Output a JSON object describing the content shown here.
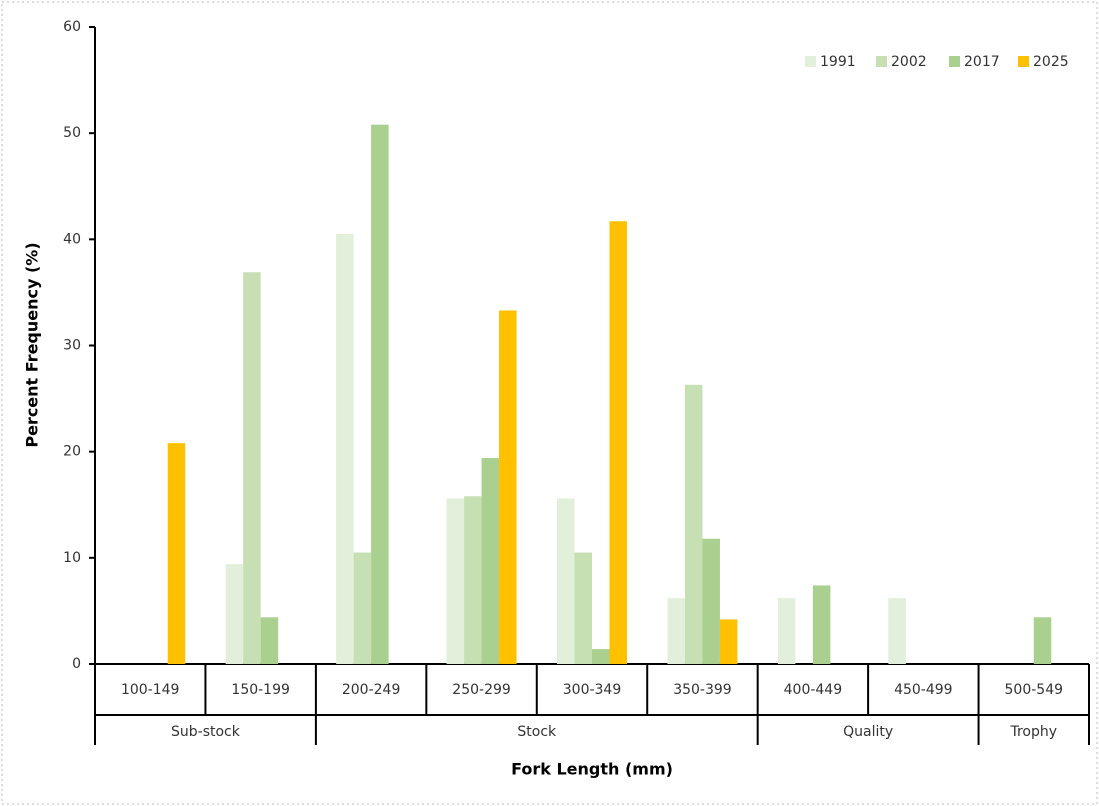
{
  "chart_data": {
    "type": "bar",
    "x_axis_label": "Fork Length (mm)",
    "y_axis_label": "Percent Frequency (%)",
    "categories": [
      "100-149",
      "150-199",
      "200-249",
      "250-299",
      "300-349",
      "350-399",
      "400-449",
      "450-499",
      "500-549"
    ],
    "category_groups": [
      "Sub-stock",
      "Sub-stock",
      "Stock",
      "Stock",
      "Stock",
      "Stock",
      "Quality",
      "Quality",
      "Trophy"
    ],
    "series": [
      {
        "name": "1991",
        "color": "#e2efda",
        "values": [
          0,
          9.4,
          40.5,
          15.6,
          15.6,
          6.2,
          6.2,
          6.2,
          0
        ]
      },
      {
        "name": "2002",
        "color": "#c6e0b4",
        "values": [
          0,
          36.9,
          10.5,
          15.8,
          10.5,
          26.3,
          0,
          0,
          0
        ]
      },
      {
        "name": "2017",
        "color": "#a9d08e",
        "values": [
          0,
          4.4,
          50.8,
          19.4,
          1.4,
          11.8,
          7.4,
          0,
          4.4
        ]
      },
      {
        "name": "2025",
        "color": "#ffc000",
        "values": [
          20.8,
          0,
          0,
          33.3,
          41.7,
          4.2,
          0,
          0,
          0
        ]
      }
    ],
    "ylim": [
      0,
      60
    ],
    "yticks": [
      0,
      10,
      20,
      30,
      40,
      50,
      60
    ],
    "grid": false,
    "legend": "top-right"
  }
}
